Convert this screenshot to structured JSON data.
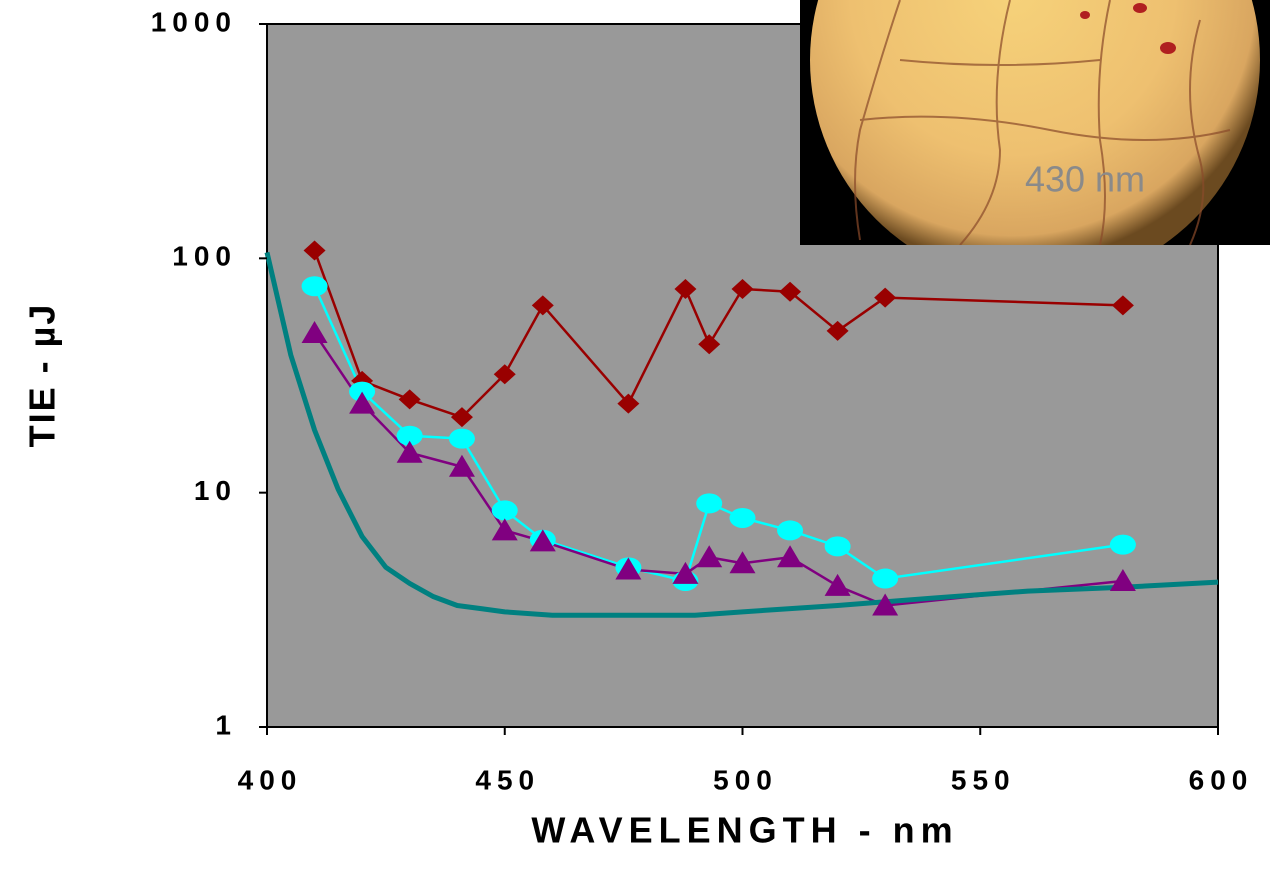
{
  "chart_data": {
    "type": "line",
    "x_label": "WAVELENGTH - nm",
    "y_label": "TIE - µJ",
    "annotation": "430 nm",
    "xlim": [
      400,
      600
    ],
    "xticks": [
      400,
      450,
      500,
      550,
      600
    ],
    "ylim": [
      1,
      1000
    ],
    "yticks": [
      1,
      10,
      100,
      1000
    ],
    "y_scale": "log",
    "grid": false,
    "plot_background": "#999999",
    "series": [
      {
        "color": "#990000",
        "marker": "diamond",
        "x": [
          410,
          420,
          430,
          441,
          450,
          458,
          476,
          488,
          493,
          500,
          510,
          520,
          530,
          580
        ],
        "values": [
          108,
          30,
          25,
          21,
          32,
          63,
          24,
          74,
          43,
          74,
          72,
          49,
          68,
          63
        ]
      },
      {
        "color": "#00ffff",
        "marker": "circle",
        "x": [
          410,
          420,
          430,
          441,
          450,
          458,
          476,
          488,
          493,
          500,
          510,
          520,
          530,
          580
        ],
        "values": [
          76,
          27,
          17.5,
          17,
          8.4,
          6.3,
          4.8,
          4.2,
          9,
          7.8,
          6.9,
          5.9,
          4.3,
          6
        ]
      },
      {
        "color": "#800080",
        "marker": "triangle",
        "x": [
          410,
          420,
          430,
          441,
          450,
          458,
          476,
          488,
          493,
          500,
          510,
          520,
          530,
          580
        ],
        "values": [
          48,
          24,
          14.8,
          12.9,
          6.9,
          6.2,
          4.7,
          4.5,
          5.3,
          5.0,
          5.3,
          4.0,
          3.3,
          4.2
        ]
      },
      {
        "color": "#008080",
        "marker": "none",
        "x": [
          400,
          405,
          410,
          415,
          420,
          425,
          430,
          435,
          440,
          445,
          450,
          460,
          475,
          490,
          500,
          520,
          540,
          560,
          580,
          600
        ],
        "values": [
          106,
          38.7,
          18.5,
          10.3,
          6.5,
          4.8,
          4.1,
          3.6,
          3.3,
          3.2,
          3.1,
          3.0,
          3.0,
          3.0,
          3.1,
          3.3,
          3.55,
          3.8,
          3.95,
          4.15
        ]
      }
    ]
  }
}
